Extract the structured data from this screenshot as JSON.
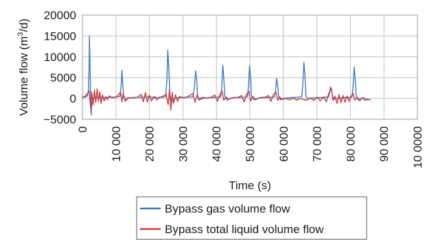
{
  "chart_data": {
    "type": "line",
    "title": "",
    "xlabel": "Time (s)",
    "ylabel_main": "Volume flow (m",
    "ylabel_sup": "3",
    "ylabel_tail": "/d)",
    "xlim": [
      0,
      100000
    ],
    "ylim": [
      -5000,
      20000
    ],
    "x_ticks": [
      0,
      10000,
      20000,
      30000,
      40000,
      50000,
      60000,
      70000,
      80000,
      90000,
      100000
    ],
    "x_tick_labels": [
      "0",
      "10 000",
      "20 000",
      "30 000",
      "40 000",
      "50 000",
      "60 000",
      "70 000",
      "80 000",
      "90 000",
      "10 0000"
    ],
    "y_ticks": [
      -5000,
      0,
      5000,
      10000,
      15000,
      20000
    ],
    "y_tick_labels": [
      "−5000",
      "0",
      "5000",
      "10000",
      "15000",
      "20000"
    ],
    "grid": true,
    "legend_position": "bottom",
    "series": [
      {
        "name": "Bypass gas volume flow",
        "color": "#3b78c3",
        "points": [
          [
            0,
            200
          ],
          [
            500,
            300
          ],
          [
            1000,
            400
          ],
          [
            1500,
            600
          ],
          [
            1800,
            2000
          ],
          [
            2000,
            8000
          ],
          [
            2100,
            15000
          ],
          [
            2250,
            9000
          ],
          [
            2400,
            3000
          ],
          [
            2600,
            -4000
          ],
          [
            2800,
            -1500
          ],
          [
            3200,
            0
          ],
          [
            4000,
            300
          ],
          [
            6000,
            250
          ],
          [
            8000,
            300
          ],
          [
            10000,
            350
          ],
          [
            11200,
            500
          ],
          [
            11600,
            3500
          ],
          [
            11800,
            6800
          ],
          [
            12000,
            4000
          ],
          [
            12300,
            500
          ],
          [
            12800,
            -700
          ],
          [
            13500,
            0
          ],
          [
            15000,
            200
          ],
          [
            17000,
            300
          ],
          [
            19000,
            350
          ],
          [
            20000,
            400
          ],
          [
            21000,
            300
          ],
          [
            23000,
            250
          ],
          [
            24800,
            400
          ],
          [
            25200,
            4000
          ],
          [
            25500,
            11600
          ],
          [
            25800,
            7000
          ],
          [
            26100,
            1000
          ],
          [
            26600,
            -800
          ],
          [
            27500,
            0
          ],
          [
            29000,
            200
          ],
          [
            31000,
            300
          ],
          [
            33000,
            400
          ],
          [
            33400,
            2500
          ],
          [
            33800,
            6600
          ],
          [
            34100,
            4500
          ],
          [
            34400,
            500
          ],
          [
            35000,
            -300
          ],
          [
            36000,
            0
          ],
          [
            38000,
            200
          ],
          [
            40000,
            300
          ],
          [
            41300,
            400
          ],
          [
            41600,
            3000
          ],
          [
            41900,
            8000
          ],
          [
            42200,
            5000
          ],
          [
            42500,
            600
          ],
          [
            43200,
            -400
          ],
          [
            44000,
            0
          ],
          [
            46000,
            250
          ],
          [
            48000,
            300
          ],
          [
            49300,
            400
          ],
          [
            49600,
            3500
          ],
          [
            49900,
            7800
          ],
          [
            50200,
            5000
          ],
          [
            50500,
            600
          ],
          [
            51200,
            -300
          ],
          [
            52000,
            0
          ],
          [
            54000,
            200
          ],
          [
            56000,
            300
          ],
          [
            57400,
            400
          ],
          [
            57700,
            2500
          ],
          [
            58000,
            4800
          ],
          [
            58300,
            3000
          ],
          [
            58600,
            400
          ],
          [
            59200,
            -300
          ],
          [
            60000,
            0
          ],
          [
            62000,
            200
          ],
          [
            64000,
            300
          ],
          [
            65500,
            400
          ],
          [
            65800,
            3500
          ],
          [
            66100,
            8700
          ],
          [
            66400,
            6000
          ],
          [
            66700,
            700
          ],
          [
            67300,
            -200
          ],
          [
            68000,
            0
          ],
          [
            70000,
            200
          ],
          [
            72000,
            300
          ],
          [
            73500,
            400
          ],
          [
            73800,
            1500
          ],
          [
            74100,
            2800
          ],
          [
            74400,
            1800
          ],
          [
            74700,
            400
          ],
          [
            75300,
            -100
          ],
          [
            76000,
            0
          ],
          [
            78000,
            200
          ],
          [
            80000,
            300
          ],
          [
            80500,
            400
          ],
          [
            80800,
            3000
          ],
          [
            81100,
            7500
          ],
          [
            81400,
            5000
          ],
          [
            81700,
            600
          ],
          [
            82300,
            -300
          ],
          [
            83000,
            0
          ],
          [
            84000,
            100
          ],
          [
            85000,
            -200
          ],
          [
            86000,
            -400
          ]
        ]
      },
      {
        "name": "Bypass total liquid volume flow",
        "color": "#c9383b",
        "points": [
          [
            0,
            300
          ],
          [
            800,
            500
          ],
          [
            1500,
            1200
          ],
          [
            2000,
            1800
          ],
          [
            2500,
            -2500
          ],
          [
            2800,
            1500
          ],
          [
            3200,
            -1500
          ],
          [
            3600,
            2000
          ],
          [
            4000,
            -1000
          ],
          [
            4400,
            2300
          ],
          [
            4800,
            -700
          ],
          [
            5200,
            1600
          ],
          [
            5600,
            -1200
          ],
          [
            6000,
            900
          ],
          [
            6500,
            -600
          ],
          [
            7000,
            400
          ],
          [
            7500,
            -300
          ],
          [
            8000,
            600
          ],
          [
            9000,
            200
          ],
          [
            10000,
            300
          ],
          [
            10800,
            900
          ],
          [
            11400,
            1600
          ],
          [
            11800,
            -800
          ],
          [
            12200,
            1200
          ],
          [
            12800,
            -500
          ],
          [
            13500,
            200
          ],
          [
            15000,
            100
          ],
          [
            16500,
            300
          ],
          [
            17500,
            1000
          ],
          [
            18200,
            -800
          ],
          [
            18800,
            1400
          ],
          [
            19400,
            -900
          ],
          [
            20000,
            800
          ],
          [
            20600,
            -600
          ],
          [
            21400,
            500
          ],
          [
            22200,
            -300
          ],
          [
            23200,
            300
          ],
          [
            24200,
            600
          ],
          [
            25000,
            1000
          ],
          [
            25600,
            -1500
          ],
          [
            26000,
            2200
          ],
          [
            26400,
            -2800
          ],
          [
            26800,
            1500
          ],
          [
            27200,
            -1200
          ],
          [
            27800,
            900
          ],
          [
            28400,
            -700
          ],
          [
            29000,
            500
          ],
          [
            30000,
            200
          ],
          [
            31000,
            300
          ],
          [
            32000,
            700
          ],
          [
            33000,
            1200
          ],
          [
            33600,
            -900
          ],
          [
            34200,
            800
          ],
          [
            34800,
            -400
          ],
          [
            35600,
            300
          ],
          [
            37000,
            100
          ],
          [
            38500,
            300
          ],
          [
            39500,
            800
          ],
          [
            40300,
            -700
          ],
          [
            41000,
            900
          ],
          [
            41700,
            1800
          ],
          [
            42200,
            -500
          ],
          [
            42800,
            400
          ],
          [
            43600,
            -200
          ],
          [
            45000,
            200
          ],
          [
            46500,
            300
          ],
          [
            47500,
            700
          ],
          [
            48300,
            -800
          ],
          [
            49000,
            1000
          ],
          [
            49700,
            1700
          ],
          [
            50200,
            -600
          ],
          [
            50800,
            500
          ],
          [
            51600,
            -300
          ],
          [
            53000,
            200
          ],
          [
            54500,
            300
          ],
          [
            55500,
            700
          ],
          [
            56300,
            -700
          ],
          [
            57000,
            900
          ],
          [
            57800,
            1500
          ],
          [
            58300,
            -500
          ],
          [
            58900,
            400
          ],
          [
            59600,
            -300
          ],
          [
            60500,
            0
          ],
          [
            62000,
            -300
          ],
          [
            63000,
            100
          ],
          [
            64000,
            -400
          ],
          [
            65000,
            0
          ],
          [
            66000,
            -300
          ],
          [
            67000,
            -400
          ],
          [
            68000,
            200
          ],
          [
            69000,
            -500
          ],
          [
            70000,
            300
          ],
          [
            71000,
            -600
          ],
          [
            72000,
            400
          ],
          [
            72800,
            -800
          ],
          [
            73600,
            1400
          ],
          [
            74300,
            2400
          ],
          [
            74800,
            -500
          ],
          [
            75400,
            600
          ],
          [
            76000,
            -1200
          ],
          [
            76600,
            900
          ],
          [
            77200,
            -1000
          ],
          [
            77800,
            700
          ],
          [
            78400,
            -900
          ],
          [
            79000,
            600
          ],
          [
            79600,
            -700
          ],
          [
            80200,
            500
          ],
          [
            80800,
            1200
          ],
          [
            81300,
            -400
          ],
          [
            82000,
            300
          ],
          [
            82800,
            -600
          ],
          [
            83600,
            200
          ],
          [
            84400,
            -500
          ],
          [
            85200,
            -200
          ],
          [
            86000,
            -400
          ]
        ]
      }
    ]
  }
}
